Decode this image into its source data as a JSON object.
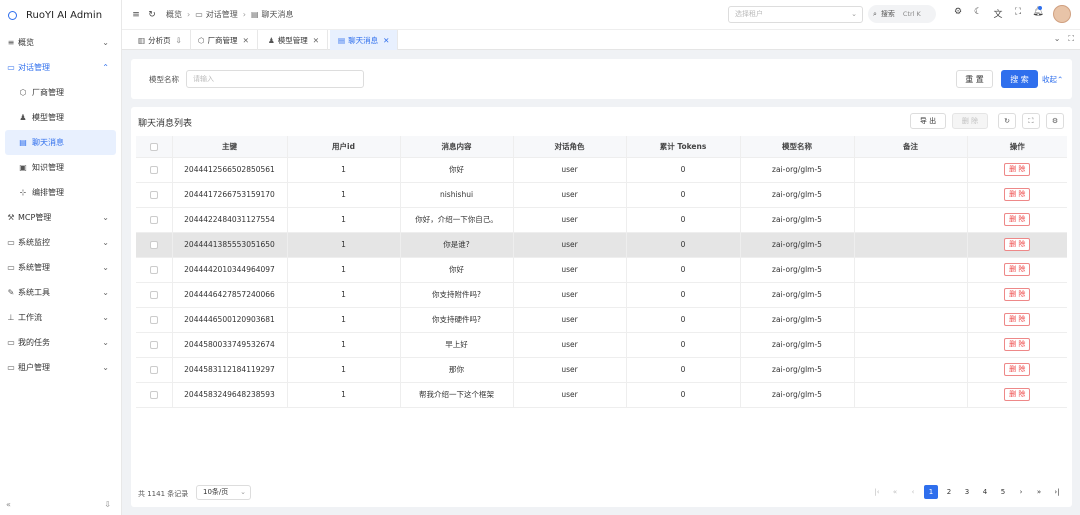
{
  "app": {
    "title": "RuoYI AI Admin"
  },
  "sidebar": {
    "items": [
      {
        "label": "概览",
        "icon": "dashboard-icon",
        "glyph": "≡"
      },
      {
        "label": "对话管理",
        "icon": "chat-icon",
        "glyph": "▭",
        "open": true,
        "children": [
          {
            "label": "厂商管理",
            "icon": "cube-icon",
            "glyph": "⬡"
          },
          {
            "label": "模型管理",
            "icon": "model-icon",
            "glyph": "♟"
          },
          {
            "label": "聊天消息",
            "icon": "message-icon",
            "glyph": "▤",
            "active": true
          },
          {
            "label": "知识管理",
            "icon": "knowledge-icon",
            "glyph": "▣"
          },
          {
            "label": "编排管理",
            "icon": "workflow-icon",
            "glyph": "⊹"
          }
        ]
      },
      {
        "label": "MCP管理",
        "icon": "mcp-icon",
        "glyph": "⚒"
      },
      {
        "label": "系统监控",
        "icon": "monitor-icon",
        "glyph": "▭"
      },
      {
        "label": "系统管理",
        "icon": "system-icon",
        "glyph": "▭"
      },
      {
        "label": "系统工具",
        "icon": "tool-icon",
        "glyph": "✎"
      },
      {
        "label": "工作流",
        "icon": "flow-icon",
        "glyph": "⊥"
      },
      {
        "label": "我的任务",
        "icon": "task-icon",
        "glyph": "▭"
      },
      {
        "label": "租户管理",
        "icon": "tenant-icon",
        "glyph": "▭"
      }
    ]
  },
  "header": {
    "breadcrumb": [
      "概览",
      "对话管理",
      "聊天消息"
    ],
    "tenant_placeholder": "选择租户",
    "search_label": "搜索",
    "search_shortcut": "Ctrl K"
  },
  "tabs": [
    {
      "label": "分析页",
      "icon": "chart-icon",
      "glyph": "▥",
      "pinned": true
    },
    {
      "label": "厂商管理",
      "icon": "cube-icon",
      "glyph": "⬡"
    },
    {
      "label": "模型管理",
      "icon": "model-icon",
      "glyph": "♟"
    },
    {
      "label": "聊天消息",
      "icon": "message-icon",
      "glyph": "▤",
      "active": true
    }
  ],
  "search_form": {
    "model_label": "模型名称",
    "model_placeholder": "请输入",
    "reset_label": "重 置",
    "search_label": "搜 索",
    "collapse_label": "收起"
  },
  "table": {
    "title": "聊天消息列表",
    "export_label": "导 出",
    "delete_label": "删 除",
    "columns": [
      "主键",
      "用户id",
      "消息内容",
      "对话角色",
      "累计 Tokens",
      "模型名称",
      "备注",
      "操作"
    ],
    "rows": [
      {
        "id": "2044412566502850561",
        "user_id": "1",
        "content": "你好",
        "role": "user",
        "tokens": "0",
        "model": "zai-org/glm-5",
        "remark": ""
      },
      {
        "id": "2044417266753159170",
        "user_id": "1",
        "content": "nishishui",
        "role": "user",
        "tokens": "0",
        "model": "zai-org/glm-5",
        "remark": ""
      },
      {
        "id": "2044422484031127554",
        "user_id": "1",
        "content": "你好，介绍一下你自己。",
        "role": "user",
        "tokens": "0",
        "model": "zai-org/glm-5",
        "remark": ""
      },
      {
        "id": "2044441385553051650",
        "user_id": "1",
        "content": "你是谁?",
        "role": "user",
        "tokens": "0",
        "model": "zai-org/glm-5",
        "remark": "",
        "highlight": true
      },
      {
        "id": "2044442010344964097",
        "user_id": "1",
        "content": "你好",
        "role": "user",
        "tokens": "0",
        "model": "zai-org/glm-5",
        "remark": ""
      },
      {
        "id": "2044446427857240066",
        "user_id": "1",
        "content": "你支持附件吗?",
        "role": "user",
        "tokens": "0",
        "model": "zai-org/glm-5",
        "remark": ""
      },
      {
        "id": "2044446500120903681",
        "user_id": "1",
        "content": "你支持硬件吗?",
        "role": "user",
        "tokens": "0",
        "model": "zai-org/glm-5",
        "remark": ""
      },
      {
        "id": "2044580033749532674",
        "user_id": "1",
        "content": "早上好",
        "role": "user",
        "tokens": "0",
        "model": "zai-org/glm-5",
        "remark": ""
      },
      {
        "id": "2044583112184119297",
        "user_id": "1",
        "content": "那你",
        "role": "user",
        "tokens": "0",
        "model": "zai-org/glm-5",
        "remark": ""
      },
      {
        "id": "2044583249648238593",
        "user_id": "1",
        "content": "帮我介绍一下这个框架",
        "role": "user",
        "tokens": "0",
        "model": "zai-org/glm-5",
        "remark": ""
      }
    ],
    "row_action_label": "删 除"
  },
  "pagination": {
    "total_text": "共 1141 条记录",
    "page_size": "10条/页",
    "pages": [
      "1",
      "2",
      "3",
      "4",
      "5"
    ],
    "current_page": "1"
  },
  "colors": {
    "accent": "#2f6fed",
    "danger": "#e44444"
  }
}
